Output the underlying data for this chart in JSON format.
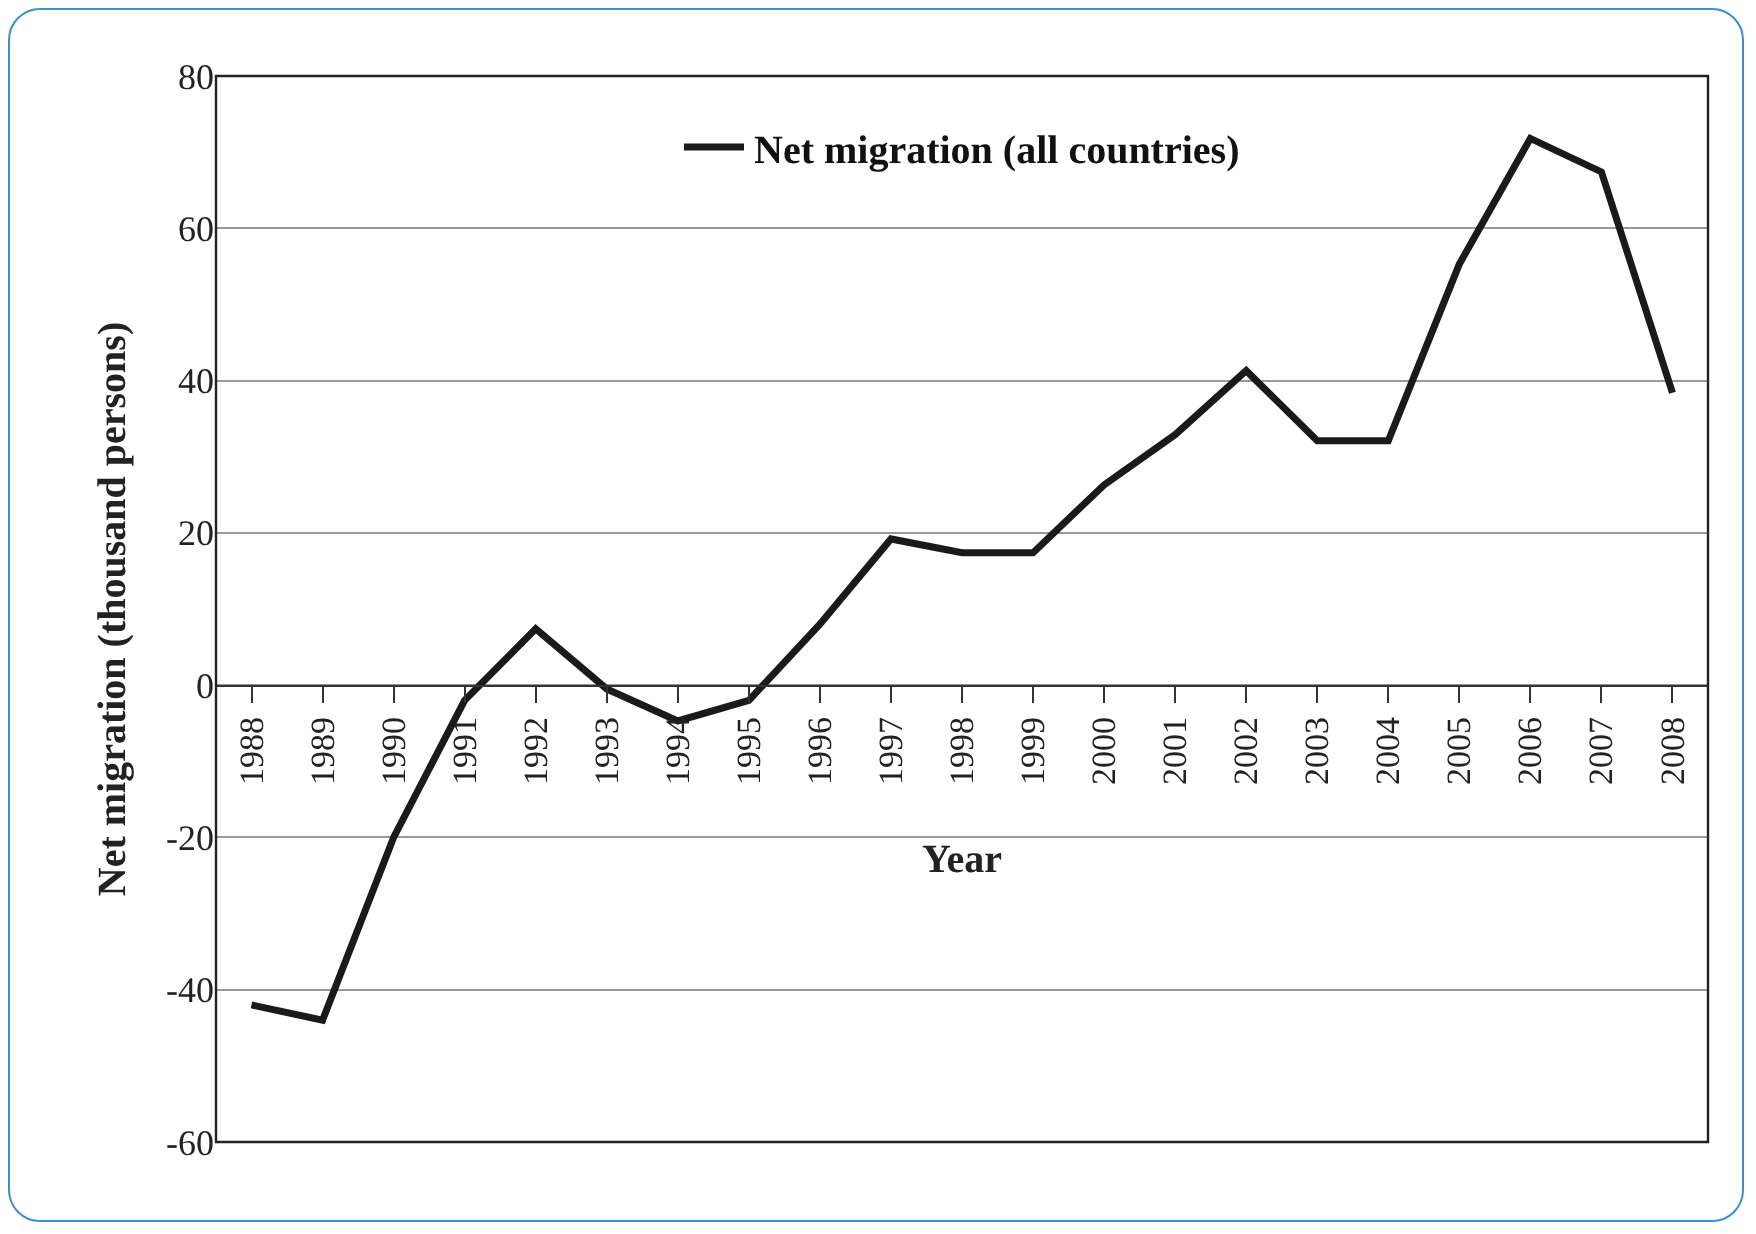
{
  "chart_data": {
    "type": "line",
    "xlabel": "Year",
    "ylabel": "Net migration (thousand persons)",
    "categories": [
      "1988",
      "1989",
      "1990",
      "1991",
      "1992",
      "1993",
      "1994",
      "1995",
      "1996",
      "1997",
      "1998",
      "1999",
      "2000",
      "2001",
      "2002",
      "2003",
      "2004",
      "2005",
      "2006",
      "2007",
      "2008"
    ],
    "series": [
      {
        "name": "Net migration (all countries)",
        "color": "#1a1a1a",
        "values": [
          -42,
          -44,
          -20,
          -2,
          7.4,
          -0.5,
          -4.7,
          -2,
          8,
          19.2,
          17.4,
          17.4,
          26.3,
          32.9,
          41.3,
          32.1,
          32.1,
          55.3,
          71.8,
          67.4,
          38.4
        ]
      }
    ],
    "ylim": [
      -60,
      80
    ],
    "yticks": [
      -60,
      -40,
      -20,
      0,
      20,
      40,
      60,
      80
    ],
    "grid": "y",
    "legend": "top",
    "marker": "none",
    "line_style": "solid"
  }
}
